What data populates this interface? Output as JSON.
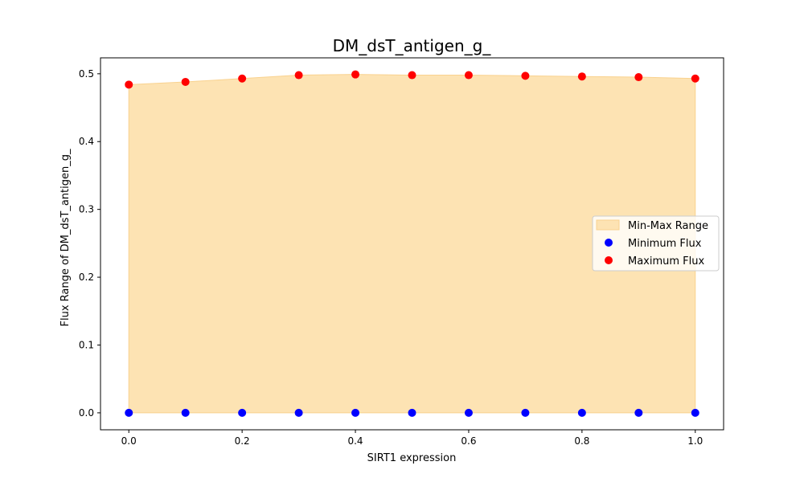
{
  "chart_data": {
    "type": "scatter",
    "title": "DM_dsT_antigen_g_",
    "xlabel": "SIRT1 expression",
    "ylabel": "Flux Range of DM_dsT_antigen_g_",
    "x": [
      0.0,
      0.1,
      0.2,
      0.3,
      0.4,
      0.5,
      0.6,
      0.7,
      0.8,
      0.9,
      1.0
    ],
    "xlim": [
      -0.05,
      1.05
    ],
    "ylim": [
      -0.025,
      0.5235
    ],
    "xticks": [
      0.0,
      0.2,
      0.4,
      0.6,
      0.8,
      1.0
    ],
    "xtick_labels": [
      "0.0",
      "0.2",
      "0.4",
      "0.6",
      "0.8",
      "1.0"
    ],
    "yticks": [
      0.0,
      0.1,
      0.2,
      0.3,
      0.4,
      0.5
    ],
    "ytick_labels": [
      "0.0",
      "0.1",
      "0.2",
      "0.3",
      "0.4",
      "0.5"
    ],
    "grid": false,
    "legend_position": "center-right",
    "fill": {
      "name": "Min-Max Range",
      "color": "#fde3b3",
      "edge_color": "#f9d28f"
    },
    "series": [
      {
        "name": "Minimum Flux",
        "color": "#0000ff",
        "values": [
          0,
          0,
          0,
          0,
          0,
          0,
          0,
          0,
          0,
          0,
          0
        ]
      },
      {
        "name": "Maximum Flux",
        "color": "#ff0000",
        "values": [
          0.484,
          0.488,
          0.493,
          0.498,
          0.499,
          0.498,
          0.498,
          0.497,
          0.496,
          0.495,
          0.493
        ]
      }
    ]
  }
}
